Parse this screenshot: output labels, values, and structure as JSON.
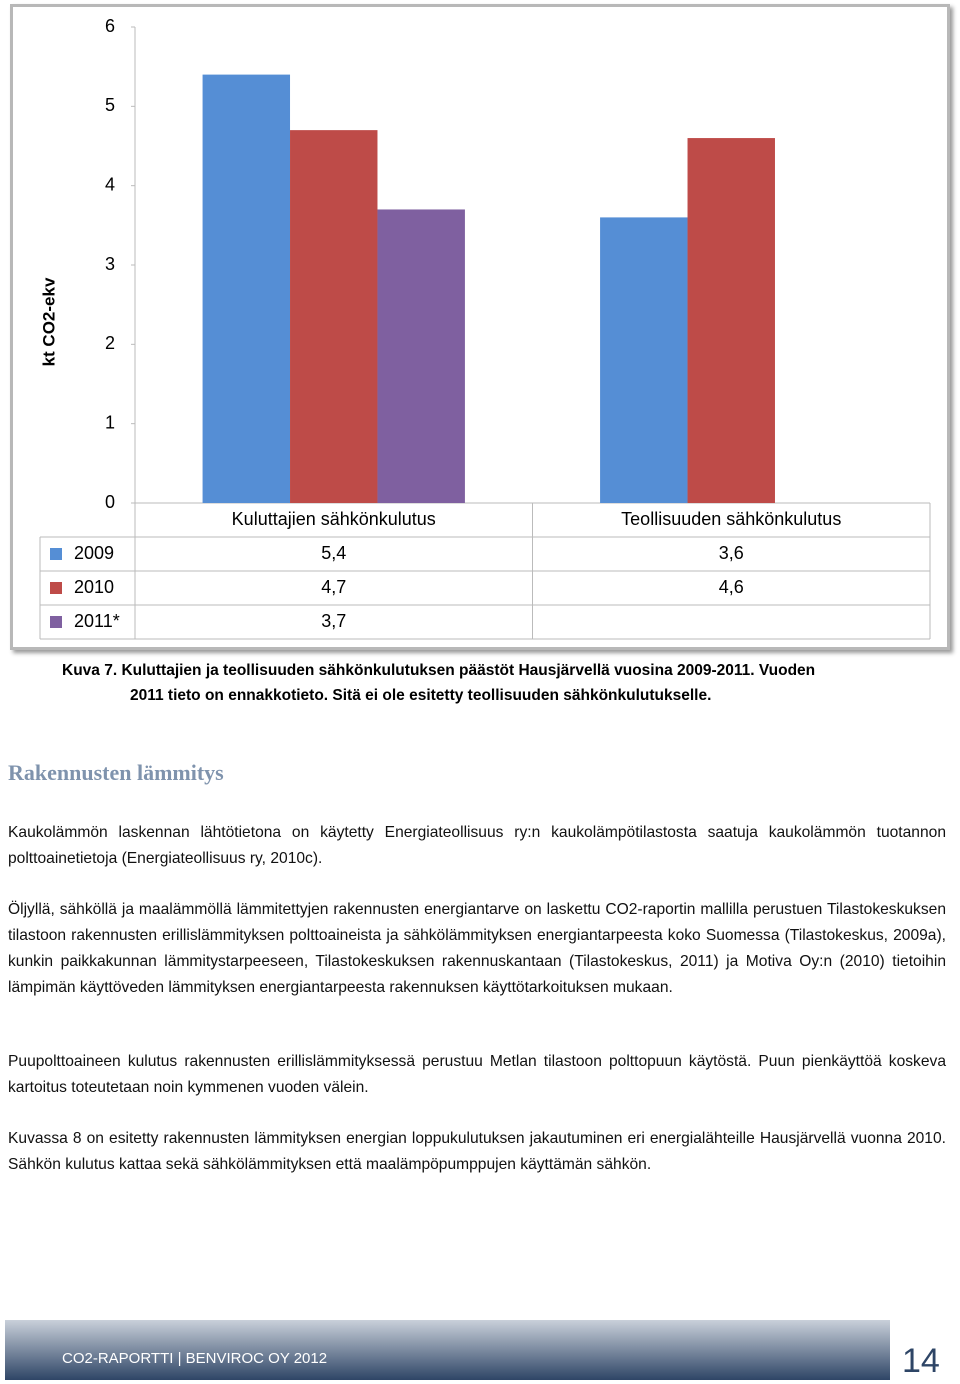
{
  "chart_data": {
    "type": "bar",
    "y_label": "kt CO2-ekv",
    "categories": [
      "Kuluttajien sähkönkulutus",
      "Teollisuuden sähkönkulutus"
    ],
    "series": [
      {
        "name": "2009",
        "color": "#558ed5",
        "values": [
          5.4,
          3.6
        ],
        "value_labels": [
          "5,4",
          "3,6"
        ]
      },
      {
        "name": "2010",
        "color": "#be4b48",
        "values": [
          4.7,
          4.6
        ],
        "value_labels": [
          "4,7",
          "4,6"
        ]
      },
      {
        "name": "2011*",
        "color": "#7f60a0",
        "values": [
          3.7,
          null
        ],
        "value_labels": [
          "3,7",
          null
        ]
      }
    ],
    "ylim": [
      0,
      6
    ],
    "yticks": [
      0,
      1,
      2,
      3,
      4,
      5,
      6
    ],
    "grid": false,
    "data_table": true
  },
  "document": {
    "caption": [
      "Kuva 7. Kuluttajien ja teollisuuden sähkönkulutuksen päästöt Hausjärvellä vuosina 2009-2011. Vuoden",
      "2011 tieto on ennakkotieto. Sitä ei ole esitetty teollisuuden sähkönkulutukselle."
    ],
    "heading": "Rakennusten lämmitys",
    "paragraphs": [
      "Kaukolämmön laskennan lähtötietona on käytetty Energiateollisuus ry:n kaukolämpötilastosta saatuja kaukolämmön tuotannon polttoainetietoja (Energiateollisuus ry, 2010c).",
      "Öljyllä, sähköllä ja maalämmöllä lämmitettyjen rakennusten energiantarve on laskettu CO2-raportin mallilla perustuen Tilastokeskuksen tilastoon rakennusten erillislämmityksen polttoaineista ja sähkölämmityksen energiantarpeesta koko Suomessa (Tilastokeskus, 2009a), kunkin paikkakunnan lämmitystarpeeseen, Tilastokeskuksen rakennuskantaan (Tilastokeskus, 2011) ja Motiva Oy:n (2010) tietoihin lämpimän käyttöveden lämmityksen energiantarpeesta rakennuksen käyttötarkoituksen mukaan.",
      "Puupolttoaineen kulutus rakennusten erillislämmityksessä perustuu Metlan tilastoon polttopuun käytöstä. Puun pienkäyttöä koskeva kartoitus toteutetaan noin kymmenen vuoden välein.",
      "Kuvassa 8 on esitetty rakennusten lämmityksen energian loppukulutuksen jakautuminen eri energialähteille Hausjärvellä vuonna 2010. Sähkön kulutus kattaa sekä sähkölämmityksen että maalämpöpumppujen käyttämän sähkön."
    ],
    "footer": {
      "text": "CO2-RAPORTTI | BENVIROC OY 2012",
      "page": "14"
    }
  }
}
